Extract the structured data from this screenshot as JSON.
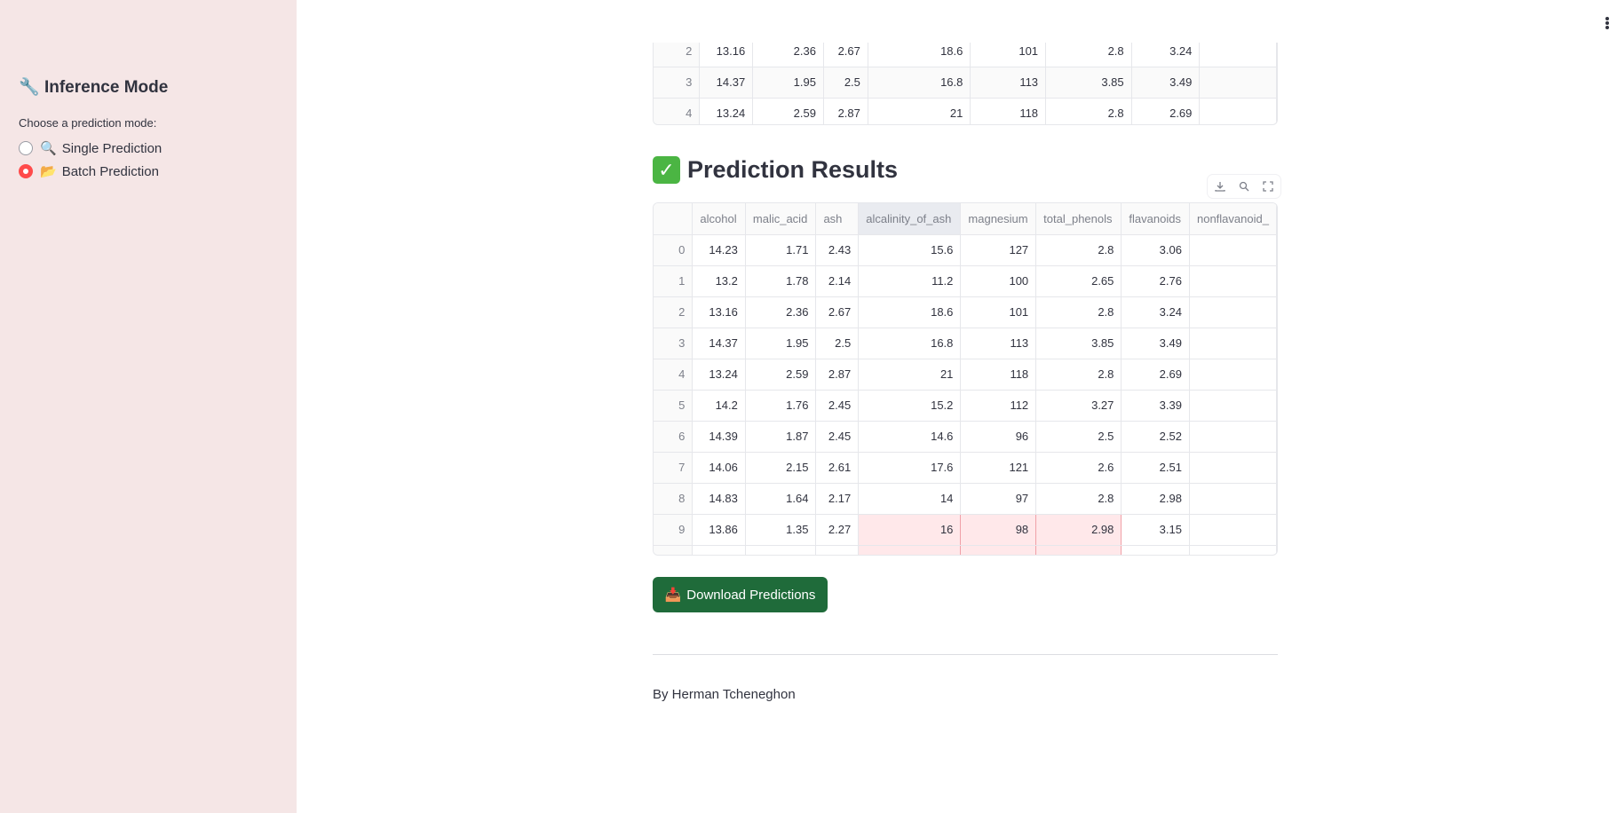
{
  "sidebar": {
    "title_icon": "🔧",
    "title": "Inference Mode",
    "radio_label": "Choose a prediction mode:",
    "options": [
      {
        "icon": "🔍",
        "label": "Single Prediction",
        "checked": false
      },
      {
        "icon": "📂",
        "label": "Batch Prediction",
        "checked": true
      }
    ]
  },
  "top_table": {
    "rows": [
      [
        "2",
        "13.16",
        "2.36",
        "2.67",
        "18.6",
        "101",
        "2.8",
        "3.24",
        ""
      ],
      [
        "3",
        "14.37",
        "1.95",
        "2.5",
        "16.8",
        "113",
        "3.85",
        "3.49",
        ""
      ],
      [
        "4",
        "13.24",
        "2.59",
        "2.87",
        "21",
        "118",
        "2.8",
        "2.69",
        ""
      ]
    ]
  },
  "results": {
    "title_icon": "✅",
    "title": "Prediction Results",
    "columns": [
      "",
      "alcohol",
      "malic_acid",
      "ash",
      "alcalinity_of_ash",
      "magnesium",
      "total_phenols",
      "flavanoids",
      "nonflavanoid_"
    ],
    "rows": [
      [
        "0",
        "14.23",
        "1.71",
        "2.43",
        "15.6",
        "127",
        "2.8",
        "3.06",
        ""
      ],
      [
        "1",
        "13.2",
        "1.78",
        "2.14",
        "11.2",
        "100",
        "2.65",
        "2.76",
        ""
      ],
      [
        "2",
        "13.16",
        "2.36",
        "2.67",
        "18.6",
        "101",
        "2.8",
        "3.24",
        ""
      ],
      [
        "3",
        "14.37",
        "1.95",
        "2.5",
        "16.8",
        "113",
        "3.85",
        "3.49",
        ""
      ],
      [
        "4",
        "13.24",
        "2.59",
        "2.87",
        "21",
        "118",
        "2.8",
        "2.69",
        ""
      ],
      [
        "5",
        "14.2",
        "1.76",
        "2.45",
        "15.2",
        "112",
        "3.27",
        "3.39",
        ""
      ],
      [
        "6",
        "14.39",
        "1.87",
        "2.45",
        "14.6",
        "96",
        "2.5",
        "2.52",
        ""
      ],
      [
        "7",
        "14.06",
        "2.15",
        "2.61",
        "17.6",
        "121",
        "2.6",
        "2.51",
        ""
      ],
      [
        "8",
        "14.83",
        "1.64",
        "2.17",
        "14",
        "97",
        "2.8",
        "2.98",
        ""
      ],
      [
        "9",
        "13.86",
        "1.35",
        "2.27",
        "16",
        "98",
        "2.98",
        "3.15",
        ""
      ]
    ]
  },
  "download_button": {
    "icon": "📥",
    "label": "Download Predictions"
  },
  "footer": "By Herman Tcheneghon",
  "colors": {
    "sidebar_bg": "#f5e6e6",
    "accent_red": "#ff4b4b",
    "button_green": "#1f6b3a"
  }
}
